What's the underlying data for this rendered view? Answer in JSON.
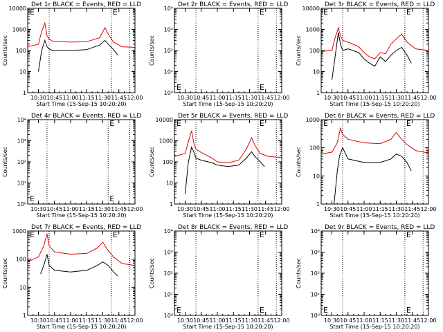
{
  "figure": {
    "start_label": "Start Time (15-Sep-15 10:20:20)",
    "ylabel": "Counts/sec",
    "marker": "E"
  },
  "chart_data": [
    {
      "type": "line",
      "title": "Det 1r BLACK = Events, RED = LLD",
      "xlim": [
        "10:20",
        "12:00"
      ],
      "ylim": [
        1,
        10000
      ],
      "yscale": "log",
      "x_ticks": [
        "10:30",
        "10:45",
        "11:00",
        "11:15",
        "11:30",
        "11:45",
        "12:00"
      ],
      "y_ticks": [
        "1",
        "10",
        "100",
        "1000",
        "10000"
      ],
      "vlines": [
        "10:40",
        "11:38",
        "11:55"
      ],
      "series": [
        {
          "name": "Events",
          "color": "#000000",
          "x": [
            "10:30",
            "10:33",
            "10:36",
            "10:38",
            "10:40",
            "10:43",
            "10:47",
            "11:00",
            "11:15",
            "11:27",
            "11:32",
            "11:35",
            "11:40",
            "11:44"
          ],
          "y": [
            10,
            100,
            300,
            150,
            120,
            100,
            100,
            100,
            110,
            180,
            300,
            200,
            110,
            60
          ]
        },
        {
          "name": "LLD",
          "color": "#e00000",
          "x": [
            "10:20",
            "10:30",
            "10:33",
            "10:36",
            "10:38",
            "10:40",
            "10:43",
            "11:00",
            "11:15",
            "11:27",
            "11:32",
            "11:35",
            "11:40",
            "11:48",
            "12:00"
          ],
          "y": [
            150,
            200,
            800,
            2000,
            500,
            350,
            280,
            250,
            260,
            400,
            1200,
            600,
            250,
            150,
            140
          ]
        }
      ]
    },
    {
      "type": "line",
      "title": "Det 2r BLACK = Events, RED = LLD",
      "xlim": [
        "10:20",
        "12:00"
      ],
      "ylim": [
        1,
        10000
      ],
      "yscale": "log",
      "x_ticks": [
        "10:30",
        "10:45",
        "11:00",
        "11:15",
        "11:30",
        "11:45",
        "12:00"
      ],
      "y_ticks": [
        "10⁰",
        "10¹",
        "10²",
        "10³",
        "10⁴"
      ],
      "vlines": [
        "10:40",
        "11:38",
        "11:55"
      ],
      "series": []
    },
    {
      "type": "line",
      "title": "Det 3r BLACK = Events, RED = LLD",
      "xlim": [
        "10:20",
        "12:00"
      ],
      "ylim": [
        1,
        10000
      ],
      "yscale": "log",
      "x_ticks": [
        "10:30",
        "10:45",
        "11:00",
        "11:15",
        "11:30",
        "11:45",
        "12:00"
      ],
      "y_ticks": [
        "1",
        "10",
        "100",
        "1000",
        "10000"
      ],
      "vlines": [
        "10:40",
        "11:38",
        "11:55"
      ],
      "series": [
        {
          "name": "Events",
          "color": "#000000",
          "x": [
            "10:30",
            "10:33",
            "10:36",
            "10:38",
            "10:40",
            "10:45",
            "10:55",
            "11:00",
            "11:05",
            "11:10",
            "11:15",
            "11:20",
            "11:25",
            "11:30",
            "11:35",
            "11:40",
            "11:42",
            "11:44"
          ],
          "y": [
            4,
            50,
            700,
            200,
            100,
            120,
            80,
            40,
            25,
            18,
            50,
            30,
            60,
            100,
            140,
            60,
            40,
            25
          ]
        },
        {
          "name": "LLD",
          "color": "#e00000",
          "x": [
            "10:20",
            "10:30",
            "10:33",
            "10:36",
            "10:38",
            "10:40",
            "10:45",
            "10:55",
            "11:00",
            "11:05",
            "11:10",
            "11:15",
            "11:20",
            "11:25",
            "11:30",
            "11:35",
            "11:40",
            "11:48",
            "12:00"
          ],
          "y": [
            90,
            100,
            400,
            1200,
            500,
            300,
            250,
            150,
            80,
            50,
            40,
            80,
            70,
            200,
            350,
            600,
            250,
            120,
            100
          ]
        }
      ]
    },
    {
      "type": "line",
      "title": "Det 4r BLACK = Events, RED = LLD",
      "xlim": [
        "10:20",
        "12:00"
      ],
      "ylim": [
        1,
        10000
      ],
      "yscale": "log",
      "x_ticks": [
        "10:30",
        "10:45",
        "11:00",
        "11:15",
        "11:30",
        "11:45",
        "12:00"
      ],
      "y_ticks": [
        "10⁰",
        "10¹",
        "10²",
        "10³",
        "10⁴"
      ],
      "vlines": [
        "10:38",
        "11:35",
        "11:55"
      ],
      "series": []
    },
    {
      "type": "line",
      "title": "Det 5r BLACK = Events, RED = LLD",
      "xlim": [
        "10:20",
        "12:00"
      ],
      "ylim": [
        1,
        10000
      ],
      "yscale": "log",
      "x_ticks": [
        "10:30",
        "10:45",
        "11:00",
        "11:15",
        "11:30",
        "11:45",
        "12:00"
      ],
      "y_ticks": [
        "1",
        "10",
        "100",
        "1000",
        "10000"
      ],
      "vlines": [
        "10:40",
        "11:38",
        "11:55"
      ],
      "series": [
        {
          "name": "Events",
          "color": "#000000",
          "x": [
            "10:30",
            "10:33",
            "10:36",
            "10:38",
            "10:40",
            "10:45",
            "10:55",
            "11:00",
            "11:10",
            "11:20",
            "11:27",
            "11:32",
            "11:35",
            "11:40",
            "11:44"
          ],
          "y": [
            3,
            100,
            500,
            300,
            150,
            120,
            90,
            70,
            60,
            70,
            150,
            300,
            180,
            100,
            60
          ]
        },
        {
          "name": "LLD",
          "color": "#e00000",
          "x": [
            "10:20",
            "10:30",
            "10:33",
            "10:36",
            "10:38",
            "10:40",
            "10:45",
            "10:55",
            "11:00",
            "11:10",
            "11:20",
            "11:27",
            "11:32",
            "11:35",
            "11:40",
            "11:48",
            "12:00"
          ],
          "y": [
            180,
            250,
            900,
            3000,
            800,
            400,
            280,
            150,
            100,
            90,
            120,
            400,
            1400,
            600,
            250,
            180,
            160
          ]
        }
      ]
    },
    {
      "type": "line",
      "title": "Det 6r BLACK = Events, RED = LLD",
      "xlim": [
        "10:20",
        "12:00"
      ],
      "ylim": [
        1,
        1000
      ],
      "yscale": "log",
      "x_ticks": [
        "10:30",
        "10:45",
        "11:00",
        "11:15",
        "11:30",
        "11:45",
        "12:00"
      ],
      "y_ticks": [
        "1",
        "10",
        "100",
        "1000"
      ],
      "vlines": [
        "10:40",
        "11:38",
        "11:55"
      ],
      "series": [
        {
          "name": "Events",
          "color": "#000000",
          "x": [
            "10:32",
            "10:35",
            "10:37",
            "10:40",
            "10:45",
            "11:00",
            "11:15",
            "11:25",
            "11:30",
            "11:35",
            "11:40",
            "11:44"
          ],
          "y": [
            1,
            15,
            50,
            100,
            40,
            30,
            30,
            40,
            60,
            50,
            30,
            15
          ]
        },
        {
          "name": "LLD",
          "color": "#e00000",
          "x": [
            "10:20",
            "10:30",
            "10:35",
            "10:38",
            "10:40",
            "10:45",
            "11:00",
            "11:15",
            "11:25",
            "11:30",
            "11:35",
            "11:40",
            "11:48",
            "12:00"
          ],
          "y": [
            60,
            70,
            150,
            500,
            300,
            200,
            150,
            140,
            200,
            350,
            200,
            130,
            80,
            65
          ]
        }
      ]
    },
    {
      "type": "line",
      "title": "Det 7r BLACK = Events, RED = LLD",
      "xlim": [
        "10:20",
        "12:00"
      ],
      "ylim": [
        1,
        1000
      ],
      "yscale": "log",
      "x_ticks": [
        "10:30",
        "10:45",
        "11:00",
        "11:15",
        "11:30",
        "11:45",
        "12:00"
      ],
      "y_ticks": [
        "1",
        "10",
        "100",
        "1000"
      ],
      "vlines": [
        "10:40",
        "11:38",
        "11:55"
      ],
      "series": [
        {
          "name": "Events",
          "color": "#000000",
          "x": [
            "10:32",
            "10:35",
            "10:38",
            "10:40",
            "10:45",
            "11:00",
            "11:15",
            "11:25",
            "11:30",
            "11:35",
            "11:40",
            "11:44"
          ],
          "y": [
            30,
            60,
            150,
            60,
            40,
            35,
            40,
            60,
            80,
            60,
            35,
            25
          ]
        },
        {
          "name": "LLD",
          "color": "#e00000",
          "x": [
            "10:20",
            "10:30",
            "10:35",
            "10:38",
            "10:40",
            "10:45",
            "11:00",
            "11:15",
            "11:25",
            "11:30",
            "11:35",
            "11:40",
            "11:48",
            "12:00"
          ],
          "y": [
            80,
            120,
            300,
            800,
            300,
            180,
            150,
            160,
            250,
            400,
            200,
            120,
            70,
            60
          ]
        }
      ]
    },
    {
      "type": "line",
      "title": "Det 8r BLACK = Events, RED = LLD",
      "xlim": [
        "10:20",
        "12:00"
      ],
      "ylim": [
        1,
        10000
      ],
      "yscale": "log",
      "x_ticks": [
        "10:30",
        "10:45",
        "11:00",
        "11:15",
        "11:30",
        "11:45",
        "12:00"
      ],
      "y_ticks": [
        "10⁰",
        "10¹",
        "10²",
        "10³",
        "10⁴"
      ],
      "vlines": [
        "10:40",
        "11:38",
        "11:55"
      ],
      "series": []
    },
    {
      "type": "line",
      "title": "Det 9r BLACK = Events, RED = LLD",
      "xlim": [
        "10:20",
        "12:00"
      ],
      "ylim": [
        1,
        10000
      ],
      "yscale": "log",
      "x_ticks": [
        "10:30",
        "10:45",
        "11:00",
        "11:15",
        "11:30",
        "11:45",
        "12:00"
      ],
      "y_ticks": [
        "10⁰",
        "10¹",
        "10²",
        "10³",
        "10⁴"
      ],
      "vlines": [
        "10:40",
        "11:38",
        "11:55"
      ],
      "series": []
    }
  ]
}
